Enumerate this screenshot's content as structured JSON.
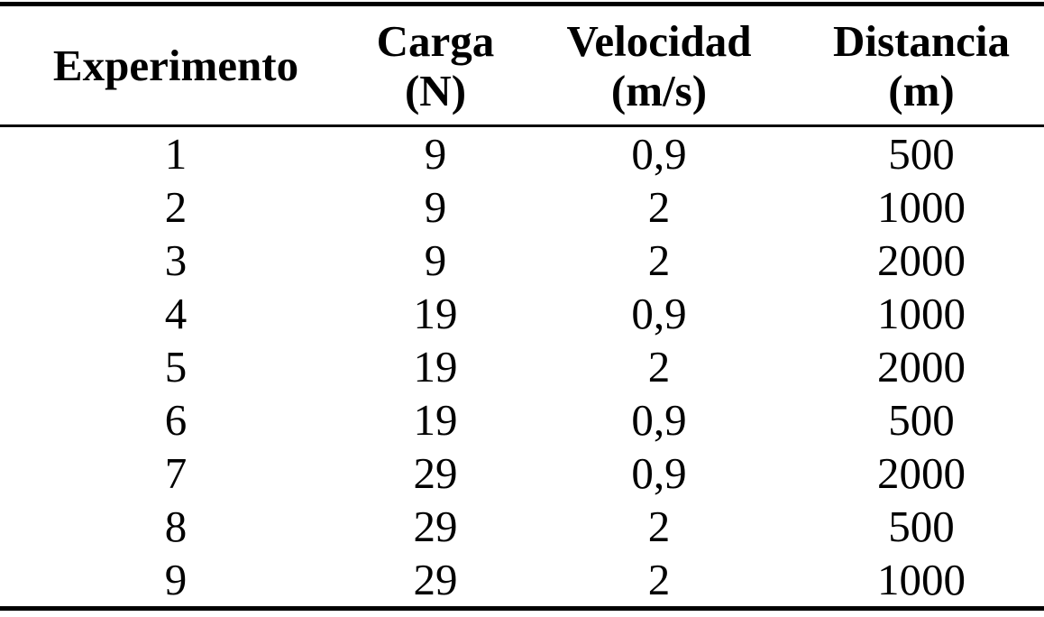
{
  "colors": {
    "background": "#ffffff",
    "text": "#000000",
    "rule": "#000000"
  },
  "table": {
    "columns": [
      {
        "label": "Experimento",
        "unit": ""
      },
      {
        "label": "Carga",
        "unit": "(N)"
      },
      {
        "label": "Velocidad",
        "unit": "(m/s)"
      },
      {
        "label": "Distancia",
        "unit": "(m)"
      }
    ],
    "rows": [
      [
        "1",
        "9",
        "0,9",
        "500"
      ],
      [
        "2",
        "9",
        "2",
        "1000"
      ],
      [
        "3",
        "9",
        "2",
        "2000"
      ],
      [
        "4",
        "19",
        "0,9",
        "1000"
      ],
      [
        "5",
        "19",
        "2",
        "2000"
      ],
      [
        "6",
        "19",
        "0,9",
        "500"
      ],
      [
        "7",
        "29",
        "0,9",
        "2000"
      ],
      [
        "8",
        "29",
        "2",
        "500"
      ],
      [
        "9",
        "29",
        "2",
        "1000"
      ]
    ]
  }
}
